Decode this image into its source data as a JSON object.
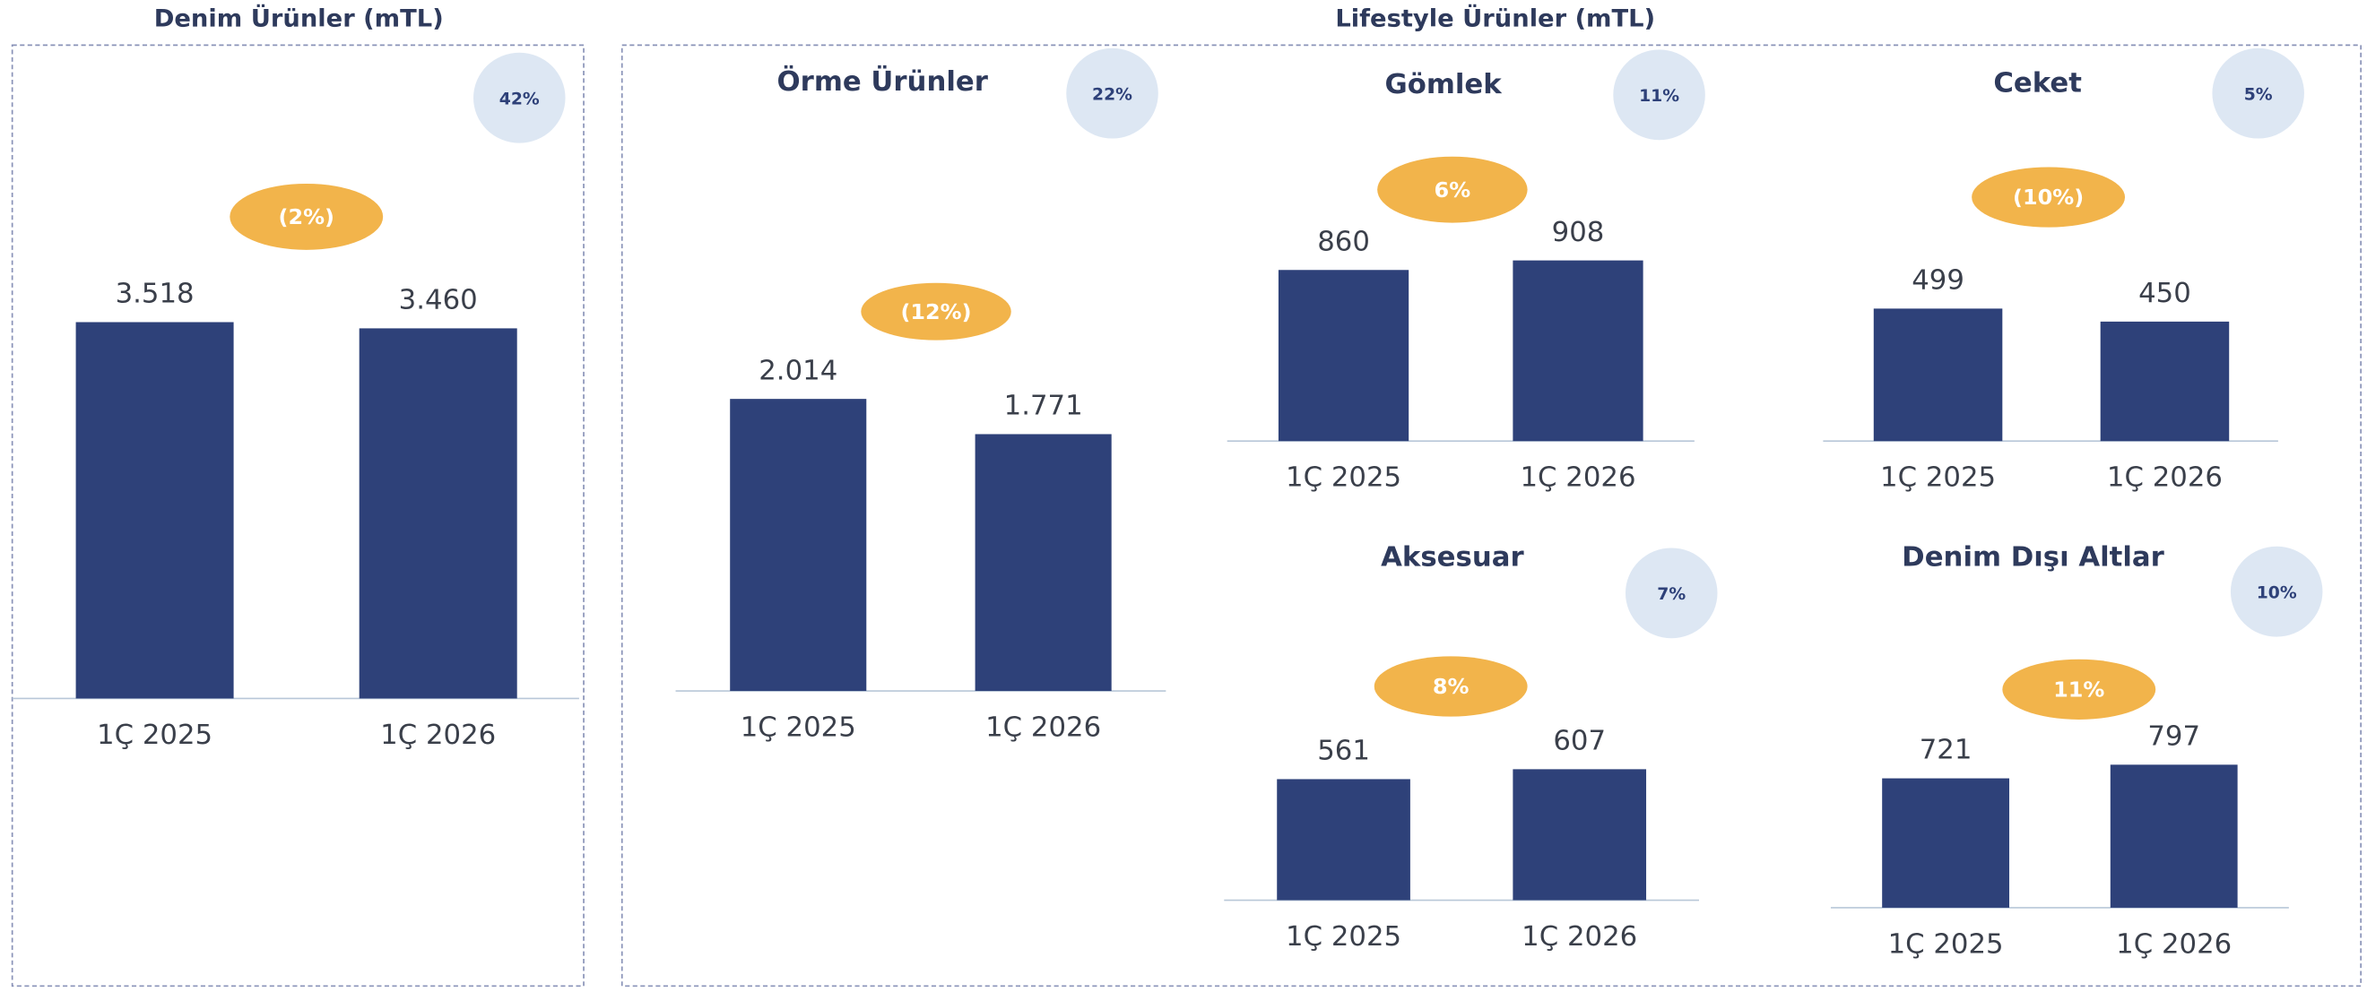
{
  "headers": [
    "Denim Ürünler (mTL)",
    "Lifestyle Ürünler (mTL)"
  ],
  "chart_data": [
    {
      "type": "bar",
      "categories": [
        "1Ç 2025",
        "1Ç 2026"
      ],
      "values": [
        3518,
        3460
      ],
      "value_labels": [
        "3.518",
        "3.460"
      ],
      "change_label": "(2%)",
      "share_label": "42%",
      "color": "#2e4179"
    },
    {
      "type": "bar",
      "title": "Örme Ürünler",
      "categories": [
        "1Ç 2025",
        "1Ç 2026"
      ],
      "values": [
        2014,
        1771
      ],
      "value_labels": [
        "2.014",
        "1.771"
      ],
      "change_label": "(12%)",
      "share_label": "22%",
      "color": "#2e4179"
    },
    {
      "type": "bar",
      "title": "Gömlek",
      "categories": [
        "1Ç 2025",
        "1Ç 2026"
      ],
      "values": [
        860,
        908
      ],
      "change_label": "6%",
      "share_label": "11%",
      "color": "#2e4179"
    },
    {
      "type": "bar",
      "title": "Ceket",
      "categories": [
        "1Ç 2025",
        "1Ç 2026"
      ],
      "values": [
        499,
        450
      ],
      "change_label": "(10%)",
      "share_label": "5%",
      "color": "#2e4179"
    },
    {
      "type": "bar",
      "title": "Aksesuar",
      "categories": [
        "1Ç 2025",
        "1Ç 2026"
      ],
      "values": [
        561,
        607
      ],
      "change_label": "8%",
      "share_label": "7%",
      "color": "#2e4179"
    },
    {
      "type": "bar",
      "title": "Denim Dışı Altlar",
      "categories": [
        "1Ç 2025",
        "1Ç 2026"
      ],
      "values": [
        721,
        797
      ],
      "change_label": "11%",
      "share_label": "10%",
      "color": "#2e4179"
    }
  ]
}
